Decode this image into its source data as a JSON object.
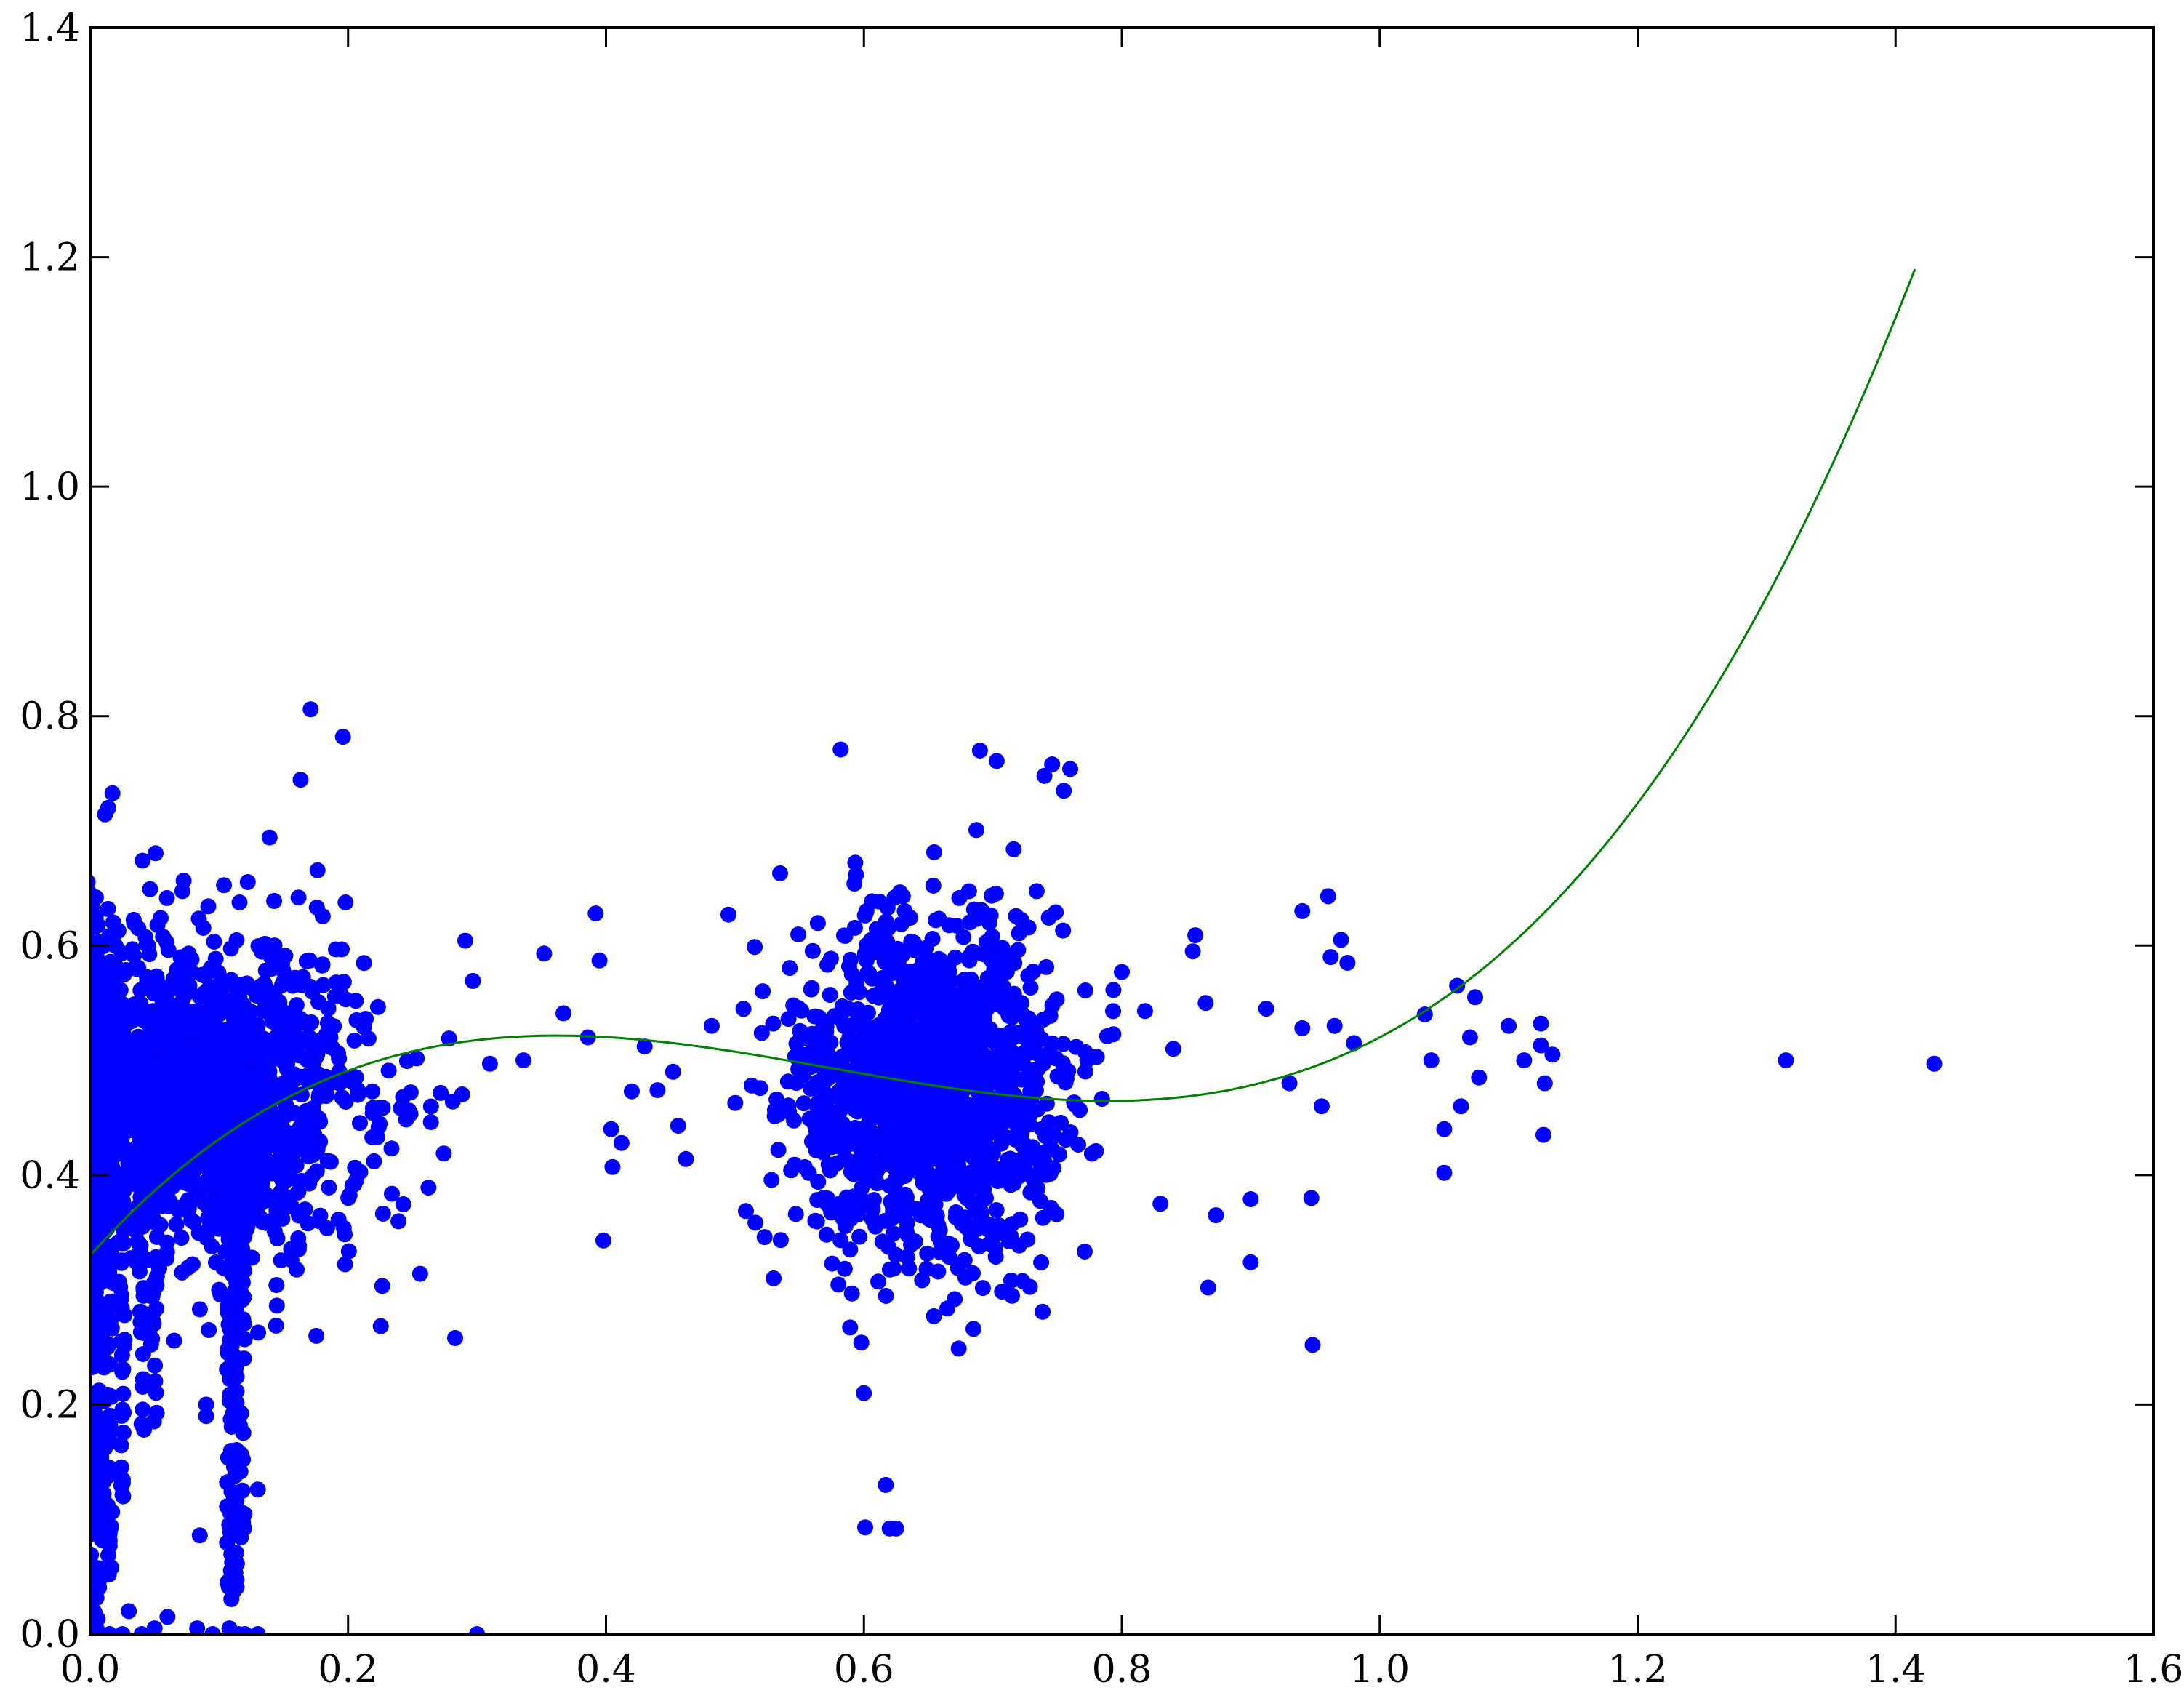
{
  "chart_data": {
    "type": "scatter",
    "title": "",
    "xlabel": "",
    "ylabel": "",
    "xlim": [
      0.0,
      1.6
    ],
    "ylim": [
      0.0,
      1.4
    ],
    "grid": false,
    "x_ticks": [
      "0.0",
      "0.2",
      "0.4",
      "0.6",
      "0.8",
      "1.0",
      "1.2",
      "1.4",
      "1.6"
    ],
    "y_ticks": [
      "0.0",
      "0.2",
      "0.4",
      "0.6",
      "0.8",
      "1.0",
      "1.2",
      "1.4"
    ],
    "colors": {
      "points": "#0000ff",
      "fit_line": "#008000",
      "axes": "#000000",
      "background": "#ffffff"
    },
    "series": [
      {
        "type": "scatter",
        "clusters": [
          {
            "x_center": 0.08,
            "x_spread": 0.07,
            "y_center": 0.47,
            "y_spread": 0.07,
            "count": 1600,
            "x_min": 0.0,
            "x_max": 0.3
          },
          {
            "x_center": 0.65,
            "x_spread": 0.05,
            "y_center": 0.48,
            "y_spread": 0.07,
            "count": 1500,
            "x_min": 0.5,
            "x_max": 0.8
          }
        ],
        "points": [
          [
            0.171,
            0.806
          ],
          [
            0.196,
            0.782
          ],
          [
            0.014,
            0.72
          ],
          [
            0.283,
            0.258
          ],
          [
            0.392,
            0.628
          ],
          [
            0.395,
            0.587
          ],
          [
            0.398,
            0.343
          ],
          [
            0.352,
            0.593
          ],
          [
            0.367,
            0.541
          ],
          [
            0.31,
            0.497
          ],
          [
            0.336,
            0.5
          ],
          [
            0.386,
            0.52
          ],
          [
            0.42,
            0.473
          ],
          [
            0.43,
            0.512
          ],
          [
            0.44,
            0.474
          ],
          [
            0.452,
            0.49
          ],
          [
            0.462,
            0.414
          ],
          [
            0.482,
            0.53
          ],
          [
            0.495,
            0.627
          ],
          [
            0.513,
            0.478
          ],
          [
            0.523,
            0.346
          ],
          [
            0.53,
            0.31
          ],
          [
            0.535,
            0.663
          ],
          [
            0.456,
            0.443
          ],
          [
            0.404,
            0.44
          ],
          [
            0.412,
            0.428
          ],
          [
            0.405,
            0.407
          ],
          [
            0.582,
            0.771
          ],
          [
            0.601,
            0.093
          ],
          [
            0.617,
            0.13
          ],
          [
            0.62,
            0.092
          ],
          [
            0.625,
            0.092
          ],
          [
            0.6,
            0.21
          ],
          [
            0.598,
            0.254
          ],
          [
            0.685,
            0.266
          ],
          [
            0.69,
            0.77
          ],
          [
            0.703,
            0.761
          ],
          [
            0.74,
            0.748
          ],
          [
            0.746,
            0.758
          ],
          [
            0.76,
            0.754
          ],
          [
            0.755,
            0.735
          ],
          [
            0.8,
            0.577
          ],
          [
            0.818,
            0.543
          ],
          [
            0.83,
            0.375
          ],
          [
            0.84,
            0.51
          ],
          [
            0.855,
            0.595
          ],
          [
            0.857,
            0.609
          ],
          [
            0.865,
            0.55
          ],
          [
            0.867,
            0.302
          ],
          [
            0.873,
            0.365
          ],
          [
            0.9,
            0.324
          ],
          [
            0.9,
            0.379
          ],
          [
            0.912,
            0.545
          ],
          [
            0.93,
            0.48
          ],
          [
            0.94,
            0.63
          ],
          [
            0.947,
            0.38
          ],
          [
            0.948,
            0.252
          ],
          [
            0.96,
            0.643
          ],
          [
            0.962,
            0.59
          ],
          [
            0.97,
            0.605
          ],
          [
            0.975,
            0.585
          ],
          [
            0.98,
            0.515
          ],
          [
            0.94,
            0.528
          ],
          [
            0.955,
            0.46
          ],
          [
            0.965,
            0.53
          ],
          [
            1.035,
            0.54
          ],
          [
            1.04,
            0.5
          ],
          [
            1.05,
            0.402
          ],
          [
            1.05,
            0.44
          ],
          [
            1.06,
            0.565
          ],
          [
            1.063,
            0.46
          ],
          [
            1.07,
            0.52
          ],
          [
            1.074,
            0.555
          ],
          [
            1.077,
            0.485
          ],
          [
            1.1,
            0.53
          ],
          [
            1.112,
            0.5
          ],
          [
            1.125,
            0.532
          ],
          [
            1.125,
            0.513
          ],
          [
            1.127,
            0.435
          ],
          [
            1.128,
            0.48
          ],
          [
            1.134,
            0.505
          ],
          [
            1.315,
            0.5
          ],
          [
            1.43,
            0.497
          ],
          [
            0.005,
            0.0
          ],
          [
            0.015,
            0.0
          ],
          [
            0.025,
            0.0
          ],
          [
            0.04,
            0.0
          ],
          [
            0.05,
            0.005
          ],
          [
            0.083,
            0.005
          ],
          [
            0.095,
            0.0
          ],
          [
            0.108,
            0.005
          ],
          [
            0.115,
            0.0
          ],
          [
            0.12,
            0.0
          ],
          [
            0.13,
            0.0
          ],
          [
            0.3,
            0.0
          ],
          [
            0.03,
            0.02
          ],
          [
            0.06,
            0.015
          ],
          [
            0.085,
            0.086
          ],
          [
            0.09,
            0.19
          ],
          [
            0.09,
            0.2
          ],
          [
            0.092,
            0.265
          ],
          [
            0.1,
            0.3
          ],
          [
            0.107,
            0.28
          ],
          [
            0.13,
            0.126
          ],
          [
            0.115,
            0.088
          ],
          [
            0.111,
            0.06
          ]
        ],
        "columns": [
          {
            "x": 0.0,
            "y_from": 0.0,
            "y_to": 0.66,
            "count": 110
          },
          {
            "x": 0.005,
            "y_from": 0.0,
            "y_to": 0.6,
            "count": 90
          },
          {
            "x": 0.01,
            "y_from": 0.05,
            "y_to": 0.55,
            "count": 70
          },
          {
            "x": 0.015,
            "y_from": 0.05,
            "y_to": 0.5,
            "count": 50
          },
          {
            "x": 0.025,
            "y_from": 0.12,
            "y_to": 0.45,
            "count": 45
          },
          {
            "x": 0.04,
            "y_from": 0.17,
            "y_to": 0.45,
            "count": 35
          },
          {
            "x": 0.05,
            "y_from": 0.14,
            "y_to": 0.45,
            "count": 30
          },
          {
            "x": 0.108,
            "y_from": 0.03,
            "y_to": 0.45,
            "count": 60
          },
          {
            "x": 0.112,
            "y_from": 0.03,
            "y_to": 0.43,
            "count": 60
          },
          {
            "x": 0.118,
            "y_from": 0.08,
            "y_to": 0.42,
            "count": 35
          }
        ]
      },
      {
        "type": "line",
        "description_of_fit": "cubic polynomial",
        "coefficients_ascending": [
          0.33,
          1.25,
          -2.52,
          1.46
        ],
        "x_range": [
          0.0,
          1.415
        ]
      }
    ]
  }
}
